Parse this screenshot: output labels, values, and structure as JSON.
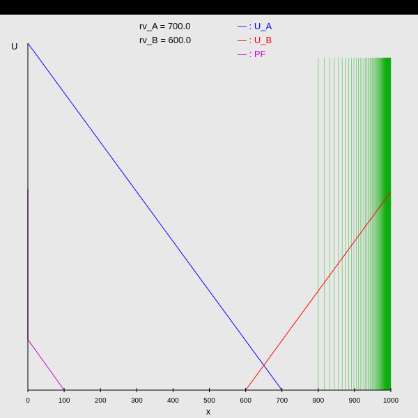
{
  "info": [
    {
      "label": "rv_A = 700.0"
    },
    {
      "label": "rv_B = 600.0"
    }
  ],
  "chart_data": {
    "type": "line",
    "xlabel": "x",
    "ylabel": "U",
    "xlim": [
      0,
      1000
    ],
    "xticks": [
      "0",
      "100",
      "200",
      "300",
      "400",
      "500",
      "600",
      "700",
      "800",
      "900",
      "1000"
    ],
    "legend_position": "top",
    "y_axis_min": 0,
    "y_axis_max": 100,
    "series": [
      {
        "name": "— : U_A",
        "color": "#0000ff",
        "points": [
          [
            0,
            100
          ],
          [
            700,
            0
          ],
          [
            1000,
            0
          ]
        ]
      },
      {
        "name": "— : U_B",
        "color": "#ff0000",
        "points": [
          [
            0,
            0
          ],
          [
            600,
            0
          ],
          [
            1000,
            57.2
          ]
        ]
      },
      {
        "name": "— : PF",
        "color": "#cc00cc",
        "points": [
          [
            0,
            14.6
          ],
          [
            100,
            0
          ]
        ]
      }
    ],
    "pf_spike": {
      "x": 0,
      "y_from": 14.6,
      "y_to": 58.0,
      "color": "#cc00cc"
    },
    "vertical_lines": {
      "color": "#00aa00",
      "y_from": 0,
      "y_to": 95.8,
      "x": [
        800,
        816.7,
        831.3,
        844.1,
        855.6,
        865.9,
        875.2,
        883.7,
        891.3,
        898.3,
        904.7,
        910.5,
        915.9,
        920.8,
        925.3,
        929.5,
        933.4,
        937.0,
        940.3,
        943.4,
        946.3,
        949.0,
        951.5,
        953.8,
        956.0,
        958.0,
        959.9,
        961.7,
        963.4,
        964.9,
        966.4,
        967.8,
        969.1,
        970.3,
        971.5,
        972.6,
        973.6,
        974.6,
        975.5,
        976.4,
        977.2,
        978.0,
        978.8,
        979.5,
        980.2,
        980.8,
        981.4,
        982.0,
        982.6,
        983.1,
        983.6,
        984.1,
        984.6,
        985.0,
        985.5,
        985.9,
        986.3,
        986.7,
        987.1,
        987.5,
        987.9,
        988.3,
        988.7,
        989.1,
        989.5,
        989.9,
        990.3,
        990.7,
        991.1,
        991.5,
        991.9,
        992.3,
        992.7,
        993.1,
        993.5,
        993.9,
        994.3,
        994.7,
        995.1,
        995.5,
        995.9,
        996.3,
        996.7,
        997.1,
        997.5,
        997.9,
        998.3,
        998.7,
        999.1,
        999.5,
        999.9
      ]
    }
  }
}
